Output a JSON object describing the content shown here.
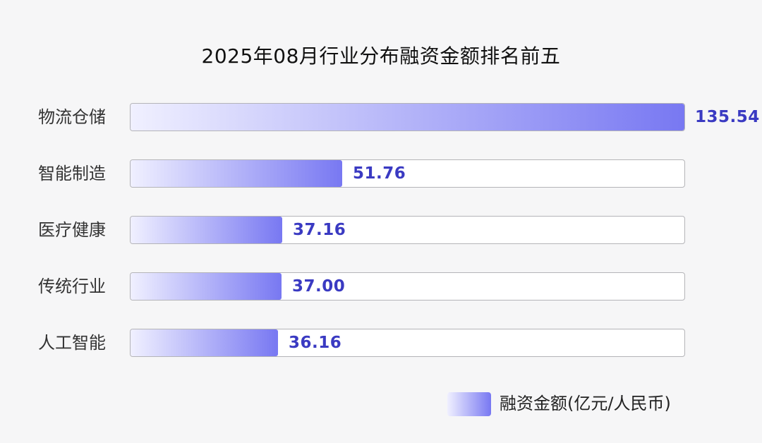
{
  "chart_data": {
    "type": "bar",
    "orientation": "horizontal",
    "title": "2025年08月行业分布融资金额排名前五",
    "categories": [
      "物流仓储",
      "智能制造",
      "医疗健康",
      "传统行业",
      "人工智能"
    ],
    "series": [
      {
        "name": "融资金额(亿元/人民币)",
        "values": [
          135.54,
          51.76,
          37.16,
          37.0,
          36.16
        ]
      }
    ],
    "value_labels": [
      "135.54",
      "51.76",
      "37.16",
      "37.00",
      "36.16"
    ],
    "xlim": [
      0,
      135.54
    ],
    "grid": false,
    "legend_position": "bottom-right"
  },
  "colors": {
    "bar_start": "#f0f0ff",
    "bar_end": "#7878f2",
    "value_text": "#3a3ac2",
    "track_border": "#b4b4b8"
  }
}
